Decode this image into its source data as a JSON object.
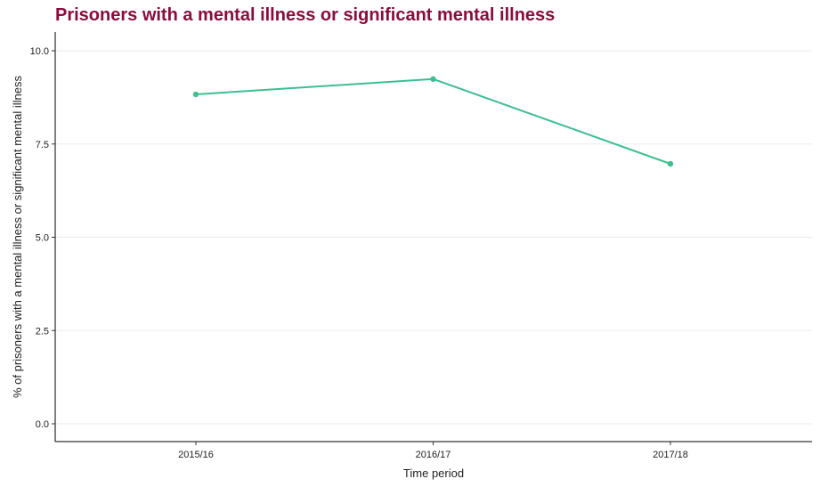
{
  "chart_data": {
    "type": "line",
    "title": "Prisoners with a mental illness or significant mental illness",
    "xlabel": "Time period",
    "ylabel": "% of prisoners with a mental illness or significant mental illness",
    "categories": [
      "2015/16",
      "2016/17",
      "2017/18"
    ],
    "series": [
      {
        "values": [
          8.83,
          9.24,
          6.97
        ],
        "color": "#3dbf8f"
      }
    ],
    "ylim": [
      0,
      10
    ],
    "yticks": [
      0,
      2.5,
      5,
      7.5,
      10
    ],
    "ytick_labels": [
      "0.0",
      "2.5",
      "5.0",
      "7.5",
      "10.0"
    ],
    "grid": "horizontal",
    "legend": "none",
    "title_color": "#8b0c3c",
    "grid_color": "#ebebeb",
    "axis_color": "#000000"
  }
}
